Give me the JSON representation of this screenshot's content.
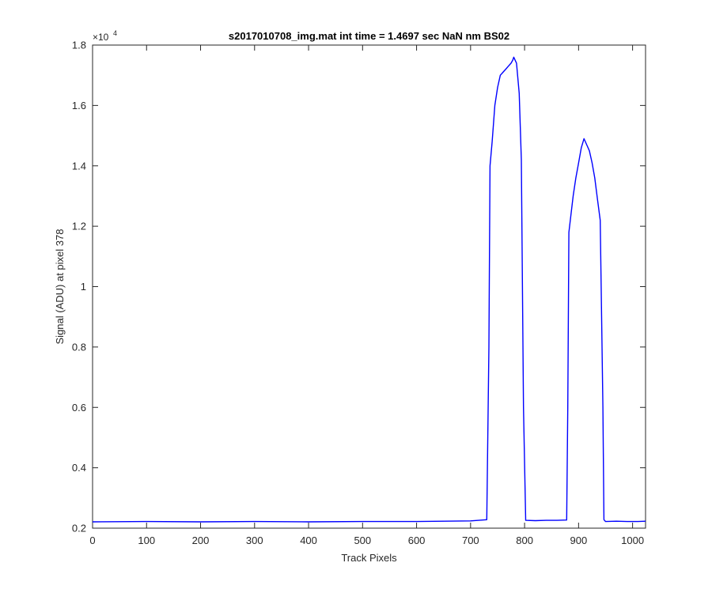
{
  "chart_data": {
    "type": "line",
    "title": "s2017010708_img.mat int time = 1.4697 sec  NaN nm BS02",
    "xlabel": "Track Pixels",
    "ylabel": "Signal (ADU) at pixel 378",
    "y_exponent_base": "×10",
    "y_exponent_power": "4",
    "xlim": [
      0,
      1024
    ],
    "ylim": [
      0.2,
      1.8
    ],
    "x_ticks": [
      0,
      100,
      200,
      300,
      400,
      500,
      600,
      700,
      800,
      900,
      1000
    ],
    "x_tick_labels": [
      "0",
      "100",
      "200",
      "300",
      "400",
      "500",
      "600",
      "700",
      "800",
      "900",
      "1000"
    ],
    "y_ticks": [
      0.2,
      0.4,
      0.6,
      0.8,
      1.0,
      1.2,
      1.4,
      1.6,
      1.8
    ],
    "y_tick_labels": [
      "0.2",
      "0.4",
      "0.6",
      "0.8",
      "1",
      "1.2",
      "1.4",
      "1.6",
      "1.8"
    ],
    "grid": false,
    "box": true,
    "series": [
      {
        "color": "#0000ff",
        "x": [
          0,
          100,
          200,
          300,
          400,
          500,
          600,
          700,
          730,
          734,
          736,
          740,
          745,
          750,
          755,
          760,
          765,
          770,
          775,
          778,
          780,
          785,
          790,
          794,
          798,
          802,
          820,
          840,
          860,
          878,
          880,
          882,
          886,
          890,
          895,
          900,
          905,
          910,
          915,
          920,
          925,
          930,
          935,
          940,
          945,
          947,
          950,
          970,
          990,
          1010,
          1024
        ],
        "y": [
          0.221,
          0.222,
          0.221,
          0.222,
          0.221,
          0.222,
          0.222,
          0.224,
          0.228,
          0.8,
          1.4,
          1.48,
          1.6,
          1.66,
          1.7,
          1.71,
          1.72,
          1.73,
          1.74,
          1.75,
          1.76,
          1.74,
          1.64,
          1.42,
          0.6,
          0.226,
          0.225,
          0.226,
          0.226,
          0.227,
          0.6,
          1.18,
          1.24,
          1.3,
          1.36,
          1.41,
          1.46,
          1.49,
          1.47,
          1.45,
          1.41,
          1.36,
          1.29,
          1.22,
          0.6,
          0.228,
          0.222,
          0.223,
          0.222,
          0.222,
          0.223
        ]
      }
    ]
  }
}
